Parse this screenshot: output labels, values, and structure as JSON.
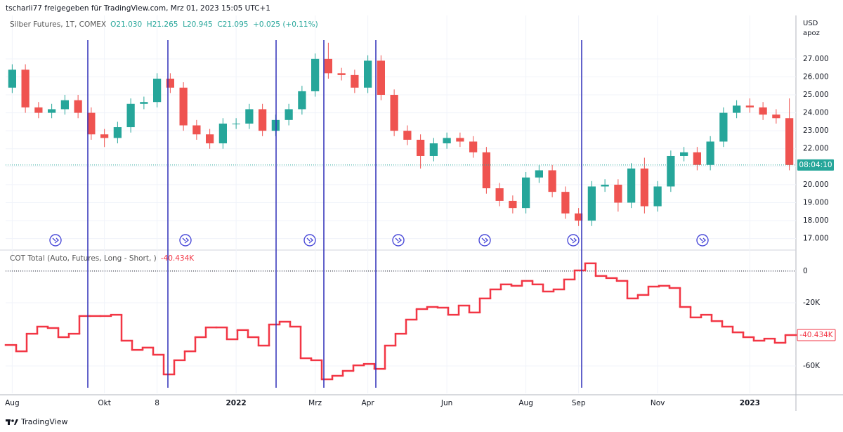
{
  "header": "tscharli77 freigegeben für TradingView.com, Mrz 01, 2023 15:05 UTC+1",
  "footer": "TradingView",
  "chart_data": [
    {
      "type": "candlestick",
      "title": "Silber Futures, 1T, COMEX",
      "subtitle": "O21.030  H21.265  L20.945  C21.095  +0.025 (+0.11%)",
      "y_unit": "USD",
      "y_unit_note": "apoz",
      "countdown": "08:04:10",
      "up_color": "#26a69a",
      "down_color": "#ef5350",
      "grid": true,
      "categories": [
        "Aug",
        null,
        null,
        null,
        null,
        null,
        null,
        "Okt",
        null,
        null,
        null,
        "8",
        null,
        null,
        null,
        null,
        null,
        "2022",
        null,
        null,
        null,
        null,
        null,
        "Mrz",
        null,
        null,
        null,
        "Apr",
        null,
        null,
        null,
        null,
        null,
        "Jun",
        null,
        null,
        null,
        null,
        null,
        "Aug",
        null,
        null,
        null,
        "Sep",
        null,
        null,
        null,
        null,
        null,
        "Nov",
        null,
        null,
        null,
        null,
        null,
        null,
        "2023",
        null,
        null,
        null
      ],
      "open": [
        25.4,
        26.4,
        24.3,
        24.0,
        24.2,
        24.7,
        24.0,
        22.8,
        22.6,
        23.2,
        24.5,
        24.6,
        25.9,
        25.4,
        23.3,
        22.8,
        22.3,
        23.4,
        23.4,
        24.2,
        23.0,
        23.6,
        24.2,
        25.2,
        27.0,
        26.2,
        26.1,
        25.4,
        26.9,
        25.0,
        23.0,
        22.5,
        21.6,
        22.3,
        22.6,
        22.4,
        21.8,
        19.8,
        19.1,
        18.7,
        20.4,
        20.8,
        19.6,
        18.4,
        18.0,
        19.9,
        20.0,
        19.0,
        20.9,
        18.8,
        19.9,
        21.6,
        21.8,
        21.1,
        22.4,
        24.0,
        24.4,
        24.3,
        23.9,
        23.7
      ],
      "high": [
        26.7,
        26.7,
        24.6,
        24.5,
        25.0,
        25.0,
        24.3,
        23.1,
        23.5,
        24.8,
        24.9,
        26.2,
        26.2,
        25.7,
        23.6,
        23.1,
        23.7,
        23.7,
        24.5,
        24.5,
        23.9,
        24.5,
        25.5,
        27.3,
        27.9,
        26.5,
        26.4,
        27.2,
        27.2,
        25.3,
        23.3,
        22.8,
        22.6,
        22.9,
        22.9,
        22.7,
        22.1,
        20.1,
        19.4,
        20.7,
        21.1,
        21.1,
        19.9,
        18.7,
        20.2,
        20.3,
        20.3,
        21.2,
        21.5,
        20.2,
        21.9,
        22.1,
        22.1,
        22.7,
        24.3,
        24.7,
        24.8,
        24.6,
        24.2,
        24.8
      ],
      "low": [
        25.1,
        24.0,
        23.7,
        23.7,
        23.9,
        23.7,
        22.5,
        22.1,
        22.3,
        22.9,
        24.2,
        24.3,
        25.1,
        23.0,
        22.5,
        22.0,
        22.0,
        23.1,
        23.1,
        22.7,
        22.7,
        23.3,
        23.9,
        24.9,
        25.9,
        25.8,
        25.1,
        25.1,
        24.7,
        22.7,
        22.2,
        20.9,
        21.3,
        22.0,
        22.1,
        21.5,
        19.5,
        18.8,
        18.4,
        18.4,
        20.1,
        19.3,
        18.1,
        17.7,
        17.7,
        19.6,
        18.5,
        18.7,
        18.4,
        18.5,
        19.6,
        21.3,
        20.8,
        20.8,
        22.1,
        23.7,
        24.0,
        23.6,
        23.4,
        20.8
      ],
      "close": [
        26.4,
        24.3,
        24.0,
        24.2,
        24.7,
        24.0,
        22.8,
        22.6,
        23.2,
        24.5,
        24.6,
        25.9,
        25.4,
        23.3,
        22.8,
        22.3,
        23.4,
        23.4,
        24.2,
        23.0,
        23.6,
        24.2,
        25.2,
        27.0,
        26.2,
        26.1,
        25.4,
        26.9,
        25.0,
        23.0,
        22.5,
        21.6,
        22.3,
        22.6,
        22.4,
        21.8,
        19.8,
        19.1,
        18.7,
        20.4,
        20.8,
        19.6,
        18.4,
        18.0,
        19.9,
        20.0,
        19.0,
        20.9,
        18.8,
        19.9,
        21.6,
        21.8,
        21.1,
        22.4,
        24.0,
        24.4,
        24.3,
        23.9,
        23.7,
        21.095
      ],
      "ylim": [
        16.4,
        29.3
      ],
      "yticks": [
        {
          "value": 17,
          "label": "17.000"
        },
        {
          "value": 18,
          "label": "18.000"
        },
        {
          "value": 19,
          "label": "19.000"
        },
        {
          "value": 20,
          "label": "20.000"
        },
        {
          "value": 21,
          "label": "21.000"
        },
        {
          "value": 22,
          "label": "22.000"
        },
        {
          "value": 23,
          "label": "23.000"
        },
        {
          "value": 24,
          "label": "24.000"
        },
        {
          "value": 25,
          "label": "25.000"
        },
        {
          "value": 26,
          "label": "26.000"
        },
        {
          "value": 27,
          "label": "27.000"
        }
      ]
    },
    {
      "type": "line",
      "title": "COT Total (Auto, Futures, Long - Short, )",
      "color": "#f23645",
      "grid": true,
      "zero_line": true,
      "values": [
        -46700,
        -50700,
        -39600,
        -35100,
        -36000,
        -41800,
        -39600,
        -28400,
        -28400,
        -28400,
        -27600,
        -44000,
        -49800,
        -48400,
        -52900,
        -65300,
        -56400,
        -50700,
        -41800,
        -35600,
        -35600,
        -43100,
        -37300,
        -41800,
        -47100,
        -33800,
        -32000,
        -35100,
        -55100,
        -56400,
        -68400,
        -66200,
        -63100,
        -59600,
        -58700,
        -61800,
        -47100,
        -39600,
        -30700,
        -24000,
        -22700,
        -23100,
        -27600,
        -21800,
        -26200,
        -17300,
        -11600,
        -8400,
        -9300,
        -6200,
        -8400,
        -12900,
        -11600,
        -5300,
        400,
        4900,
        -3100,
        -4400,
        -6200,
        -17300,
        -15100,
        -9800,
        -9300,
        -10700,
        -22700,
        -29300,
        -27600,
        -31600,
        -35100,
        -38700,
        -41800,
        -44000,
        -42700,
        -45300,
        -40434
      ],
      "last": {
        "value": -40434,
        "label": "-40.434K"
      },
      "ylim": [
        -77300,
        12400
      ],
      "yticks": [
        {
          "value": -60000,
          "label": "-60K"
        },
        {
          "value": -20000,
          "label": "-20K"
        },
        0
      ]
    }
  ]
}
